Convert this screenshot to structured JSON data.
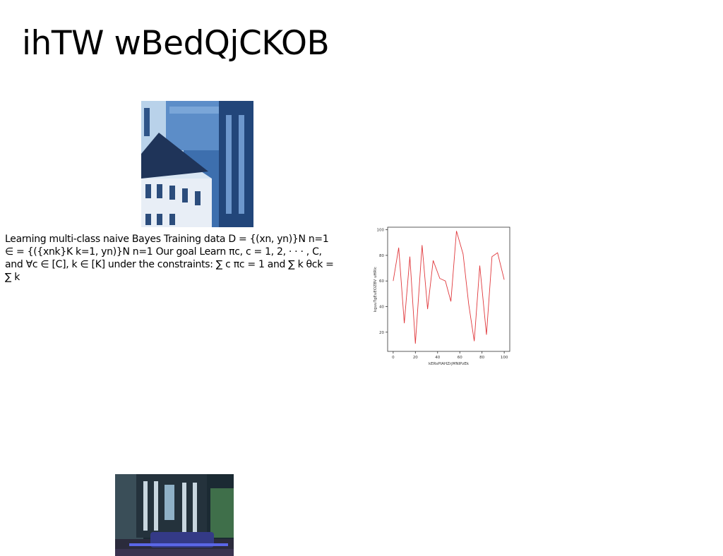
{
  "slide": {
    "title": "ihTW wBedQjCKOB",
    "body_text": "Learning multi-class naive Bayes Training data D = {(xn, yn)}N n=1 ∈ = {({xnk}K k=1, yn)}N n=1 Our goal Learn πc, c = 1, 2, · · · , C, and ∀c ∈ [C], k ∈ [K] under the constraints: ∑ c πc = 1 and ∑ k θck = ∑ k"
  },
  "chart_data": {
    "type": "line",
    "xlabel": "kERsPIAHZrjMNIPzEk",
    "ylabel": "kguuTgEuEOZBV uHRlc",
    "xlim": [
      -5,
      105
    ],
    "ylim": [
      5,
      102
    ],
    "xticks": [
      "0",
      "20",
      "40",
      "60",
      "80",
      "100"
    ],
    "yticks": [
      "20",
      "40",
      "60",
      "80",
      "100"
    ],
    "grid": false,
    "line_color": "#e0383c",
    "series": [
      {
        "x": [
          0,
          5,
          10,
          15,
          20,
          26,
          31,
          36,
          42,
          47,
          52,
          57,
          63,
          68,
          73,
          78,
          84,
          89,
          94,
          100
        ],
        "values": [
          60,
          86,
          27,
          79,
          11,
          88,
          38,
          76,
          62,
          60,
          44,
          99,
          81,
          42,
          13,
          72,
          18,
          79,
          82,
          61
        ]
      }
    ]
  }
}
